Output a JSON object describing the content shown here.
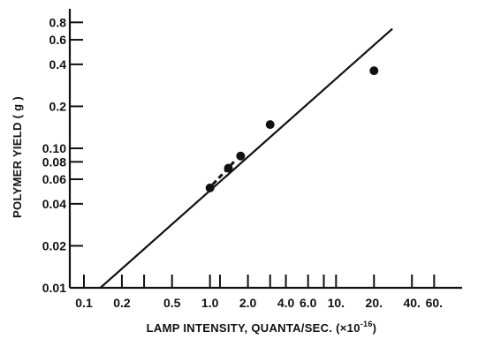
{
  "chart_data": {
    "type": "scatter",
    "x_scale": "log",
    "y_scale": "log",
    "xlabel": "LAMP INTENSITY,  QUANTA/SEC. (×10",
    "xlabel_exponent": "-16",
    "xlabel_close": ")",
    "ylabel": "POLYMER YIELD ( g )",
    "xlim": [
      0.1,
      100
    ],
    "ylim": [
      0.01,
      1.0
    ],
    "x_ticks": [
      {
        "value": 0.1,
        "label": "0.1"
      },
      {
        "value": 0.2,
        "label": "0.2"
      },
      {
        "value": 0.3,
        "label": ""
      },
      {
        "value": 0.5,
        "label": "0.5"
      },
      {
        "value": 1.0,
        "label": "1.0"
      },
      {
        "value": 1.2,
        "label": ""
      },
      {
        "value": 2.0,
        "label": "2.0"
      },
      {
        "value": 3.0,
        "label": ""
      },
      {
        "value": 4.0,
        "label": "4.0"
      },
      {
        "value": 6.0,
        "label": "6.0"
      },
      {
        "value": 8.0,
        "label": ""
      },
      {
        "value": 10,
        "label": "10."
      },
      {
        "value": 20,
        "label": "20."
      },
      {
        "value": 40,
        "label": "40."
      },
      {
        "value": 60,
        "label": "60."
      }
    ],
    "y_ticks": [
      {
        "value": 0.01,
        "label": "0.01"
      },
      {
        "value": 0.02,
        "label": "0.02"
      },
      {
        "value": 0.04,
        "label": "0.04"
      },
      {
        "value": 0.06,
        "label": "0.06"
      },
      {
        "value": 0.08,
        "label": "0.08"
      },
      {
        "value": 0.1,
        "label": "0.10"
      },
      {
        "value": 0.2,
        "label": "0.2"
      },
      {
        "value": 0.4,
        "label": "0.4"
      },
      {
        "value": 0.6,
        "label": "0.6"
      },
      {
        "value": 0.8,
        "label": "0.8"
      }
    ],
    "points": [
      {
        "x": 1.0,
        "y": 0.052
      },
      {
        "x": 1.4,
        "y": 0.072
      },
      {
        "x": 1.75,
        "y": 0.088
      },
      {
        "x": 3.0,
        "y": 0.148
      },
      {
        "x": 20.0,
        "y": 0.36
      }
    ],
    "fit_line": {
      "x": [
        0.135,
        28.0
      ],
      "y": [
        0.01,
        0.72
      ]
    },
    "dashed_segment": {
      "x": [
        1.05,
        1.55
      ],
      "y": [
        0.055,
        0.08
      ]
    }
  }
}
